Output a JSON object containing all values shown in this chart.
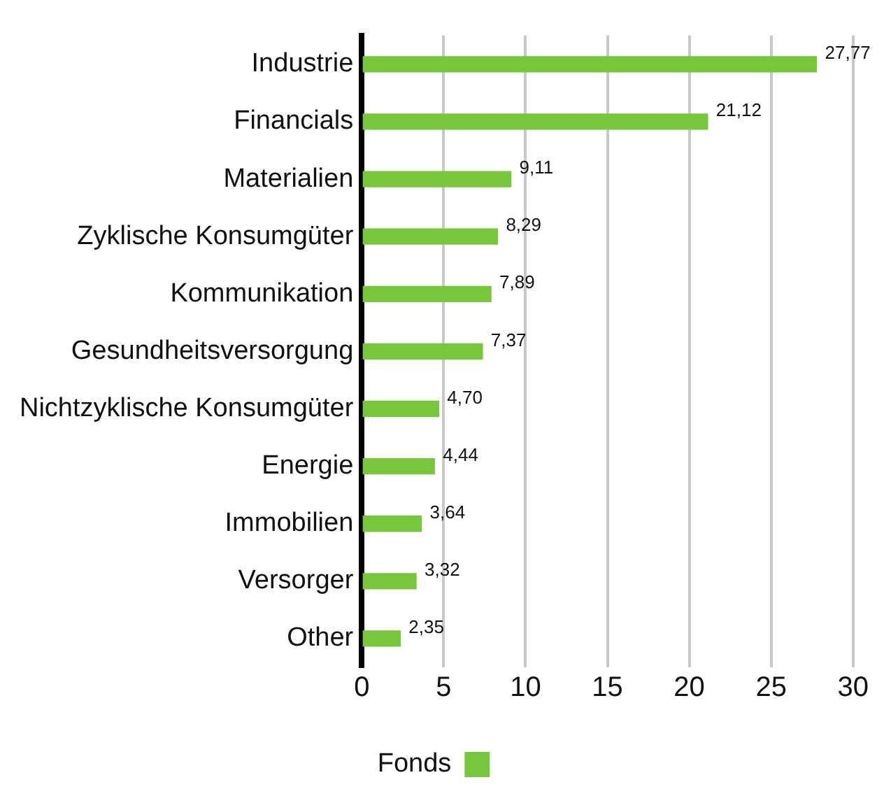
{
  "chart_data": {
    "type": "bar",
    "orientation": "horizontal",
    "categories": [
      "Industrie",
      "Financials",
      "Materialien",
      "Zyklische Konsumgüter",
      "Kommunikation",
      "Gesundheitsversorgung",
      "Nichtzyklische Konsumgüter",
      "Energie",
      "Immobilien",
      "Versorger",
      "Other"
    ],
    "series": [
      {
        "name": "Fonds",
        "color": "#76c83a",
        "values": [
          27.77,
          21.12,
          9.11,
          8.29,
          7.89,
          7.37,
          4.7,
          4.44,
          3.64,
          3.32,
          2.35
        ],
        "value_labels": [
          "27,77",
          "21,12",
          "9,11",
          "8,29",
          "7,89",
          "7,37",
          "4,70",
          "4,44",
          "3,64",
          "3,32",
          "2,35"
        ]
      }
    ],
    "xlim": [
      0,
      30
    ],
    "xticks": [
      0,
      5,
      10,
      15,
      20,
      25,
      30
    ],
    "grid": "x",
    "legend": "bottom"
  }
}
